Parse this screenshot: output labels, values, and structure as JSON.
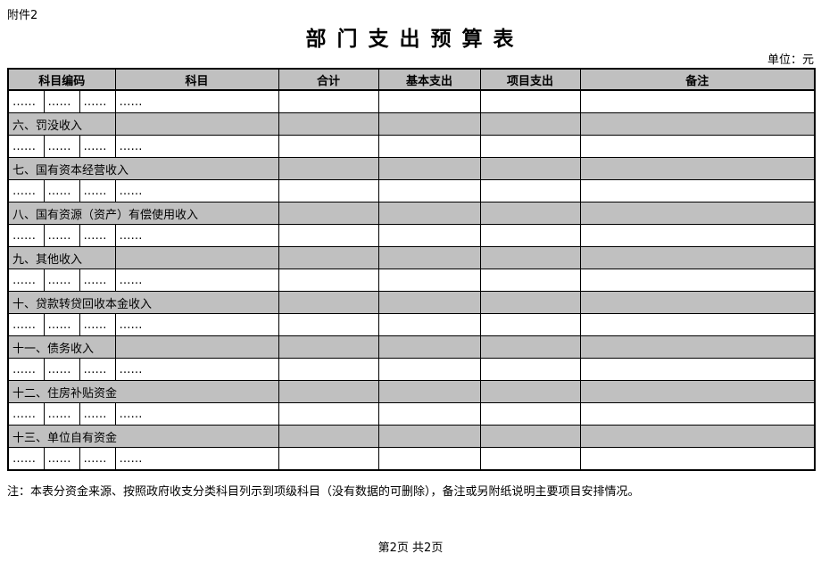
{
  "page": {
    "attachment_label": "附件2",
    "title": "部 门 支 出 预 算 表",
    "unit_label": "单位：元",
    "note": "注：本表分资金来源、按照政府收支分类科目列示到项级科目（没有数据的可删除），备注或另附纸说明主要项目安排情况。",
    "footer": "第2页 共2页"
  },
  "table": {
    "headers": {
      "subject_code": "科目编码",
      "subject": "科目",
      "total": "合计",
      "basic_expenditure": "基本支出",
      "project_expenditure": "项目支出",
      "remarks": "备注"
    },
    "ellipsis": "……",
    "rows": [
      {
        "type": "data"
      },
      {
        "type": "section",
        "label": "六、罚没收入",
        "span": 3
      },
      {
        "type": "data"
      },
      {
        "type": "section",
        "label": "七、国有资本经营收入",
        "span": 4
      },
      {
        "type": "data"
      },
      {
        "type": "section",
        "label": "八、国有资源（资产）有偿使用收入",
        "span": 4
      },
      {
        "type": "data"
      },
      {
        "type": "section",
        "label": "九、其他收入",
        "span": 3
      },
      {
        "type": "data"
      },
      {
        "type": "section",
        "label": "十、贷款转贷回收本金收入",
        "span": 4
      },
      {
        "type": "data"
      },
      {
        "type": "section",
        "label": "十一、债务收入",
        "span": 3
      },
      {
        "type": "data"
      },
      {
        "type": "section",
        "label": "十二、住房补贴资金",
        "span": 4
      },
      {
        "type": "data"
      },
      {
        "type": "section",
        "label": "十三、单位自有资金",
        "span": 4
      },
      {
        "type": "data"
      }
    ]
  }
}
